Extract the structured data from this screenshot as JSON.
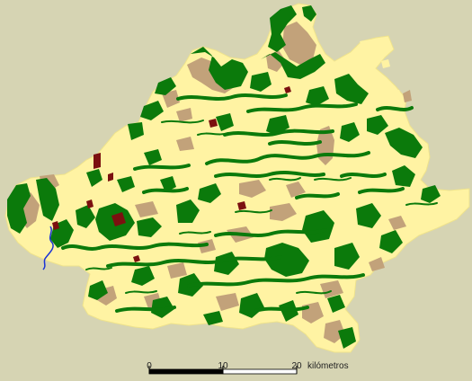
{
  "colors": {
    "background": "#d6d4b3",
    "land": "#fff3a3",
    "forest": "#0b7a0b",
    "scrub": "#c2a27a",
    "urban": "#7b1010",
    "water": "#1a33d6",
    "scale_dark": "#000000",
    "scale_light": "#ffffff"
  },
  "scale_bar": {
    "ticks": [
      "0",
      "10",
      "20"
    ],
    "unit": "kilómetros"
  }
}
